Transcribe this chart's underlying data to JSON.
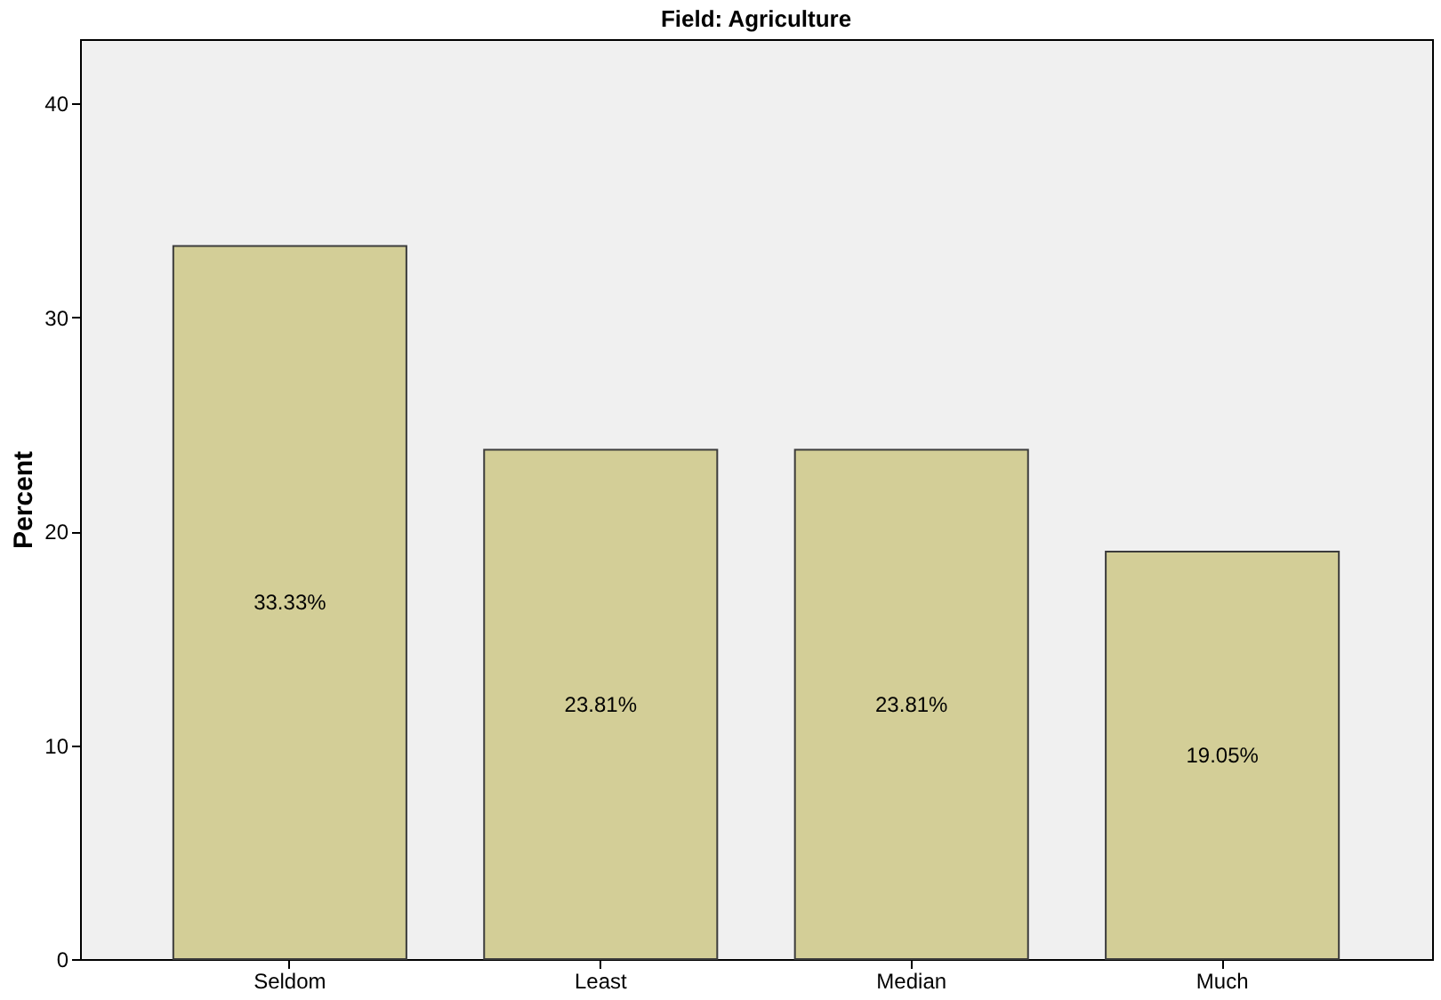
{
  "chart_data": {
    "type": "bar",
    "title": "Field: Agriculture",
    "ylabel": "Percent",
    "categories": [
      "Seldom",
      "Least",
      "Median",
      "Much"
    ],
    "values": [
      33.33,
      23.81,
      23.81,
      19.05
    ],
    "value_labels": [
      "33.33%",
      "23.81%",
      "23.81%",
      "19.05%"
    ],
    "color": "#d3ce97",
    "ylim": [
      0,
      43
    ],
    "yticks": [
      0,
      10,
      20,
      30,
      40
    ],
    "grid": false
  }
}
